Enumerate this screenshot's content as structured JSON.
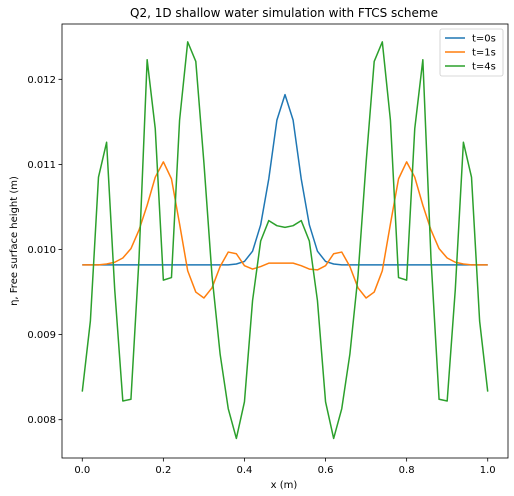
{
  "chart_data": {
    "type": "line",
    "title": "Q2, 1D shallow water simulation with FTCS scheme",
    "xlabel": "x (m)",
    "ylabel": "η, Free surface height (m)",
    "xlim": [
      -0.05,
      1.05
    ],
    "ylim": [
      0.00755,
      0.01265
    ],
    "xticks": [
      0.0,
      0.2,
      0.4,
      0.6,
      0.8,
      1.0
    ],
    "xtick_labels": [
      "0.0",
      "0.2",
      "0.4",
      "0.6",
      "0.8",
      "1.0"
    ],
    "yticks": [
      0.008,
      0.009,
      0.01,
      0.011,
      0.012
    ],
    "ytick_labels": [
      "0.008",
      "0.009",
      "0.010",
      "0.011",
      "0.012"
    ],
    "grid": false,
    "legend_position": "top-right",
    "x": [
      0.0,
      0.02,
      0.04,
      0.06,
      0.08,
      0.1,
      0.12,
      0.14,
      0.16,
      0.18,
      0.2,
      0.22,
      0.24,
      0.26,
      0.28,
      0.3,
      0.32,
      0.34,
      0.36,
      0.38,
      0.4,
      0.42,
      0.44,
      0.46,
      0.48,
      0.5,
      0.52,
      0.54,
      0.56,
      0.58,
      0.6,
      0.62,
      0.64,
      0.66,
      0.68,
      0.7,
      0.72,
      0.74,
      0.76,
      0.78,
      0.8,
      0.82,
      0.84,
      0.86,
      0.88,
      0.9,
      0.92,
      0.94,
      0.96,
      0.98,
      1.0
    ],
    "series": [
      {
        "name": "t=0s",
        "color": "#1f77b4",
        "values": [
          0.00982,
          0.00982,
          0.00982,
          0.00982,
          0.00982,
          0.00982,
          0.00982,
          0.00982,
          0.00982,
          0.00982,
          0.00982,
          0.00982,
          0.00982,
          0.00982,
          0.00982,
          0.00982,
          0.00982,
          0.00982,
          0.00982,
          0.00983,
          0.00986,
          0.00998,
          0.01029,
          0.01083,
          0.01152,
          0.01182,
          0.01152,
          0.01083,
          0.01029,
          0.00998,
          0.00986,
          0.00983,
          0.00982,
          0.00982,
          0.00982,
          0.00982,
          0.00982,
          0.00982,
          0.00982,
          0.00982,
          0.00982,
          0.00982,
          0.00982,
          0.00982,
          0.00982,
          0.00982,
          0.00982,
          0.00982,
          0.00982,
          0.00982,
          0.00982
        ]
      },
      {
        "name": "t=1s",
        "color": "#ff7f0e",
        "values": [
          0.00982,
          0.00982,
          0.00982,
          0.00983,
          0.00985,
          0.0099,
          0.01001,
          0.01023,
          0.01052,
          0.01085,
          0.01103,
          0.01083,
          0.0103,
          0.00975,
          0.0095,
          0.00943,
          0.00955,
          0.0098,
          0.00997,
          0.00995,
          0.00981,
          0.00977,
          0.0098,
          0.00984,
          0.00984,
          0.00984,
          0.00984,
          0.00981,
          0.00977,
          0.00976,
          0.00981,
          0.00995,
          0.00997,
          0.0098,
          0.00955,
          0.00943,
          0.0095,
          0.00975,
          0.0103,
          0.01083,
          0.01103,
          0.01085,
          0.01052,
          0.01023,
          0.01001,
          0.0099,
          0.00985,
          0.00983,
          0.00982,
          0.00982,
          0.00982
        ]
      },
      {
        "name": "t=4s",
        "color": "#2ca02c",
        "values": [
          0.00833,
          0.00916,
          0.01085,
          0.01126,
          0.00953,
          0.00822,
          0.00824,
          0.0099,
          0.01223,
          0.01142,
          0.00964,
          0.00967,
          0.01152,
          0.01244,
          0.01221,
          0.01102,
          0.00969,
          0.00877,
          0.00813,
          0.00778,
          0.00821,
          0.0094,
          0.0101,
          0.01034,
          0.01028,
          0.01026,
          0.01028,
          0.01034,
          0.0101,
          0.0094,
          0.00821,
          0.00778,
          0.00813,
          0.00877,
          0.00969,
          0.01102,
          0.01221,
          0.01244,
          0.01152,
          0.00967,
          0.00964,
          0.01142,
          0.01223,
          0.0099,
          0.00824,
          0.00822,
          0.00953,
          0.01126,
          0.01085,
          0.00916,
          0.00833
        ]
      }
    ]
  }
}
